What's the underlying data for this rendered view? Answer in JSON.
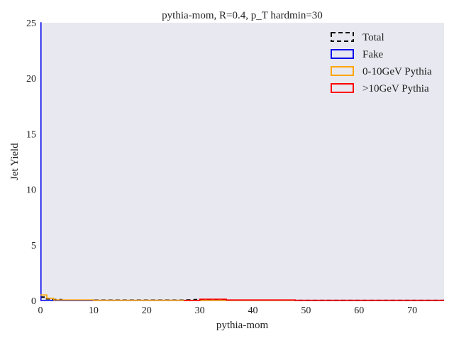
{
  "chart_data": {
    "type": "step",
    "title": "pythia-mom, R=0.4, p_T hardmin=30",
    "xlabel": "pythia-mom",
    "ylabel": "Jet Yield",
    "xlim": [
      0,
      76
    ],
    "ylim": [
      0,
      25
    ],
    "xticks": [
      0,
      10,
      20,
      30,
      40,
      50,
      60,
      70
    ],
    "yticks": [
      0,
      5,
      10,
      15,
      20,
      25
    ],
    "grid": false,
    "background": "#e8e8f0",
    "legend_position": "top-right",
    "series": [
      {
        "name": "Total",
        "color": "#000000",
        "style": "dashed",
        "points": [
          [
            0,
            0.3
          ],
          [
            1,
            0.3
          ],
          [
            1,
            0.15
          ],
          [
            2,
            0.15
          ],
          [
            2,
            0.08
          ],
          [
            4,
            0.08
          ],
          [
            4,
            0.03
          ],
          [
            27,
            0.03
          ],
          [
            27,
            0.05
          ],
          [
            29,
            0.05
          ],
          [
            29,
            0.08
          ],
          [
            35,
            0.08
          ],
          [
            35,
            0.03
          ],
          [
            48,
            0.03
          ],
          [
            48,
            0.01
          ],
          [
            76,
            0.01
          ]
        ]
      },
      {
        "name": "Fake",
        "color": "#0000ee",
        "style": "solid",
        "points": [
          [
            0,
            25
          ],
          [
            0.1,
            25
          ],
          [
            0.1,
            0
          ],
          [
            76,
            0
          ]
        ]
      },
      {
        "name": "0-10GeV Pythia",
        "color": "#ffa500",
        "style": "solid",
        "points": [
          [
            0,
            0.5
          ],
          [
            1.2,
            0.5
          ],
          [
            1.2,
            0.2
          ],
          [
            2.5,
            0.2
          ],
          [
            2.5,
            0.05
          ],
          [
            10,
            0.05
          ],
          [
            10,
            0.02
          ],
          [
            27,
            0.02
          ],
          [
            27,
            0.01
          ],
          [
            76,
            0.01
          ]
        ]
      },
      {
        "name": ">10GeV Pythia",
        "color": "#ff0000",
        "style": "solid",
        "points": [
          [
            27,
            0
          ],
          [
            30,
            0
          ],
          [
            30,
            0.12
          ],
          [
            35,
            0.12
          ],
          [
            35,
            0.05
          ],
          [
            48,
            0.05
          ],
          [
            48,
            0.02
          ],
          [
            76,
            0.02
          ]
        ]
      }
    ]
  }
}
